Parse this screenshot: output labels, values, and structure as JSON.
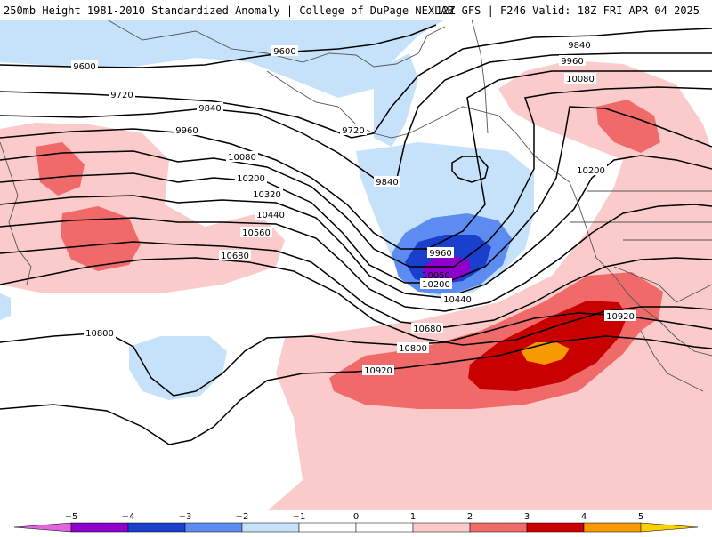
{
  "header": {
    "title_left": "250mb Height 1981-2010 Standardized Anomaly | College of DuPage NEXLAB",
    "title_right": "12Z GFS | F246 Valid: 18Z FRI APR 04 2025"
  },
  "colors": {
    "neg5": "#e066e0",
    "neg4": "#8e00cc",
    "neg3": "#1a3fcc",
    "neg2": "#5c8cf2",
    "neg1": "#c6e2fa",
    "pos1": "#fbcaca",
    "pos2": "#f06a6a",
    "pos3": "#c80000",
    "pos4": "#f59a00",
    "pos5": "#ffd000",
    "contour": "#000000",
    "coast": "#555555"
  },
  "contour_labels": [
    "9600",
    "9720",
    "9840",
    "9960",
    "10080",
    "10200",
    "10320",
    "10440",
    "10560",
    "10680",
    "10800",
    "10920",
    "10050"
  ],
  "colorbar": {
    "ticks": [
      "−5",
      "−4",
      "−3",
      "−2",
      "−1",
      "0",
      "1",
      "2",
      "3",
      "4",
      "5"
    ]
  }
}
